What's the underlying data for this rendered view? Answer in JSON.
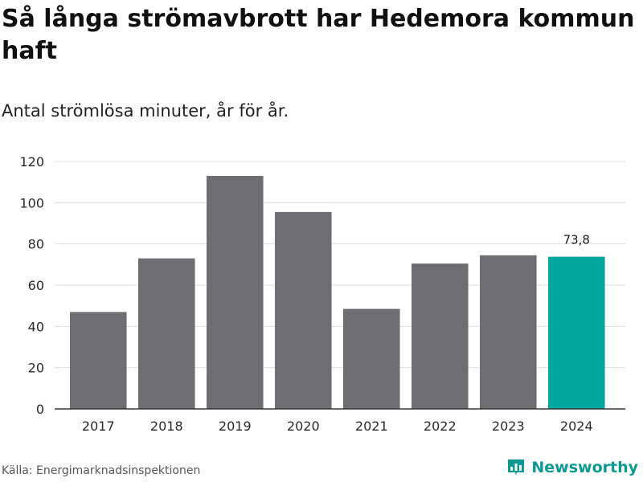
{
  "title": "Så långa strömavbrott har Hedemora kommun haft",
  "subtitle": "Antal strömlösa minuter, år för år.",
  "source": "Källa: Energimarknadsinspektionen",
  "brand": "Newsworthy",
  "colors": {
    "bar": "#6e6d72",
    "highlight": "#00a79d",
    "grid": "#dddddd",
    "axis": "#333333"
  },
  "chart_data": {
    "type": "bar",
    "categories": [
      "2017",
      "2018",
      "2019",
      "2020",
      "2021",
      "2022",
      "2023",
      "2024"
    ],
    "values": [
      47,
      73,
      113,
      95.5,
      48.5,
      70.5,
      74.5,
      73.8
    ],
    "highlight_index": 7,
    "data_labels": [
      {
        "index": 7,
        "text": "73,8"
      }
    ],
    "ylim": [
      0,
      120
    ],
    "yticks": [
      0,
      20,
      40,
      60,
      80,
      100,
      120
    ],
    "grid": true,
    "xlabel": "",
    "ylabel": ""
  }
}
